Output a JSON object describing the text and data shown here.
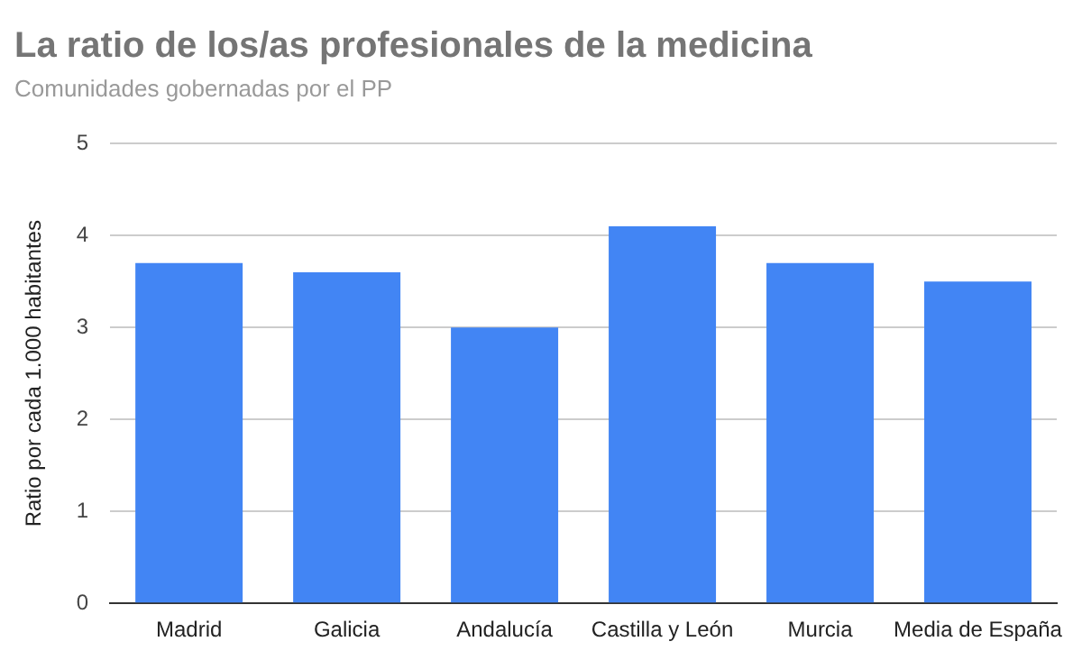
{
  "chart_data": {
    "type": "bar",
    "title": "La ratio de los/as profesionales de la medicina",
    "subtitle": "Comunidades gobernadas por el PP",
    "ylabel": "Ratio por cada 1.000 habitantes",
    "categories": [
      "Madrid",
      "Galicia",
      "Andalucía",
      "Castilla y León",
      "Murcia",
      "Media de España"
    ],
    "values": [
      3.7,
      3.6,
      3.0,
      4.1,
      3.7,
      3.5
    ],
    "color": "#4285f4",
    "ylim": [
      0,
      5
    ],
    "yticks": [
      0,
      1,
      2,
      3,
      4,
      5
    ],
    "grid": "y",
    "legend": false
  }
}
